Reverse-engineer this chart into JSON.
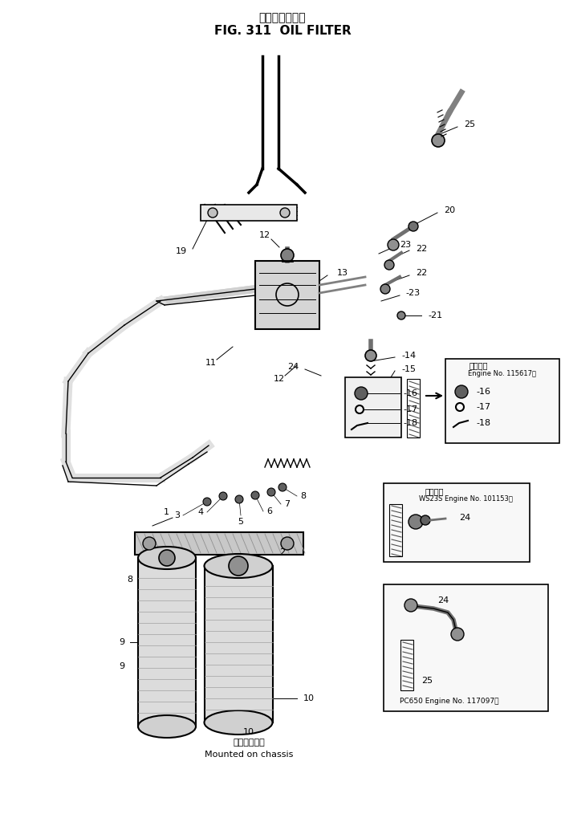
{
  "title_jp": "オイルフィルタ",
  "title_en": "FIG. 311  OIL FILTER",
  "bottom_label_jp": "車体側に取付",
  "bottom_label_en": "Mounted on chassis",
  "bg_color": "#ffffff",
  "line_color": "#000000",
  "figsize": [
    7.04,
    10.19
  ],
  "dpi": 100
}
